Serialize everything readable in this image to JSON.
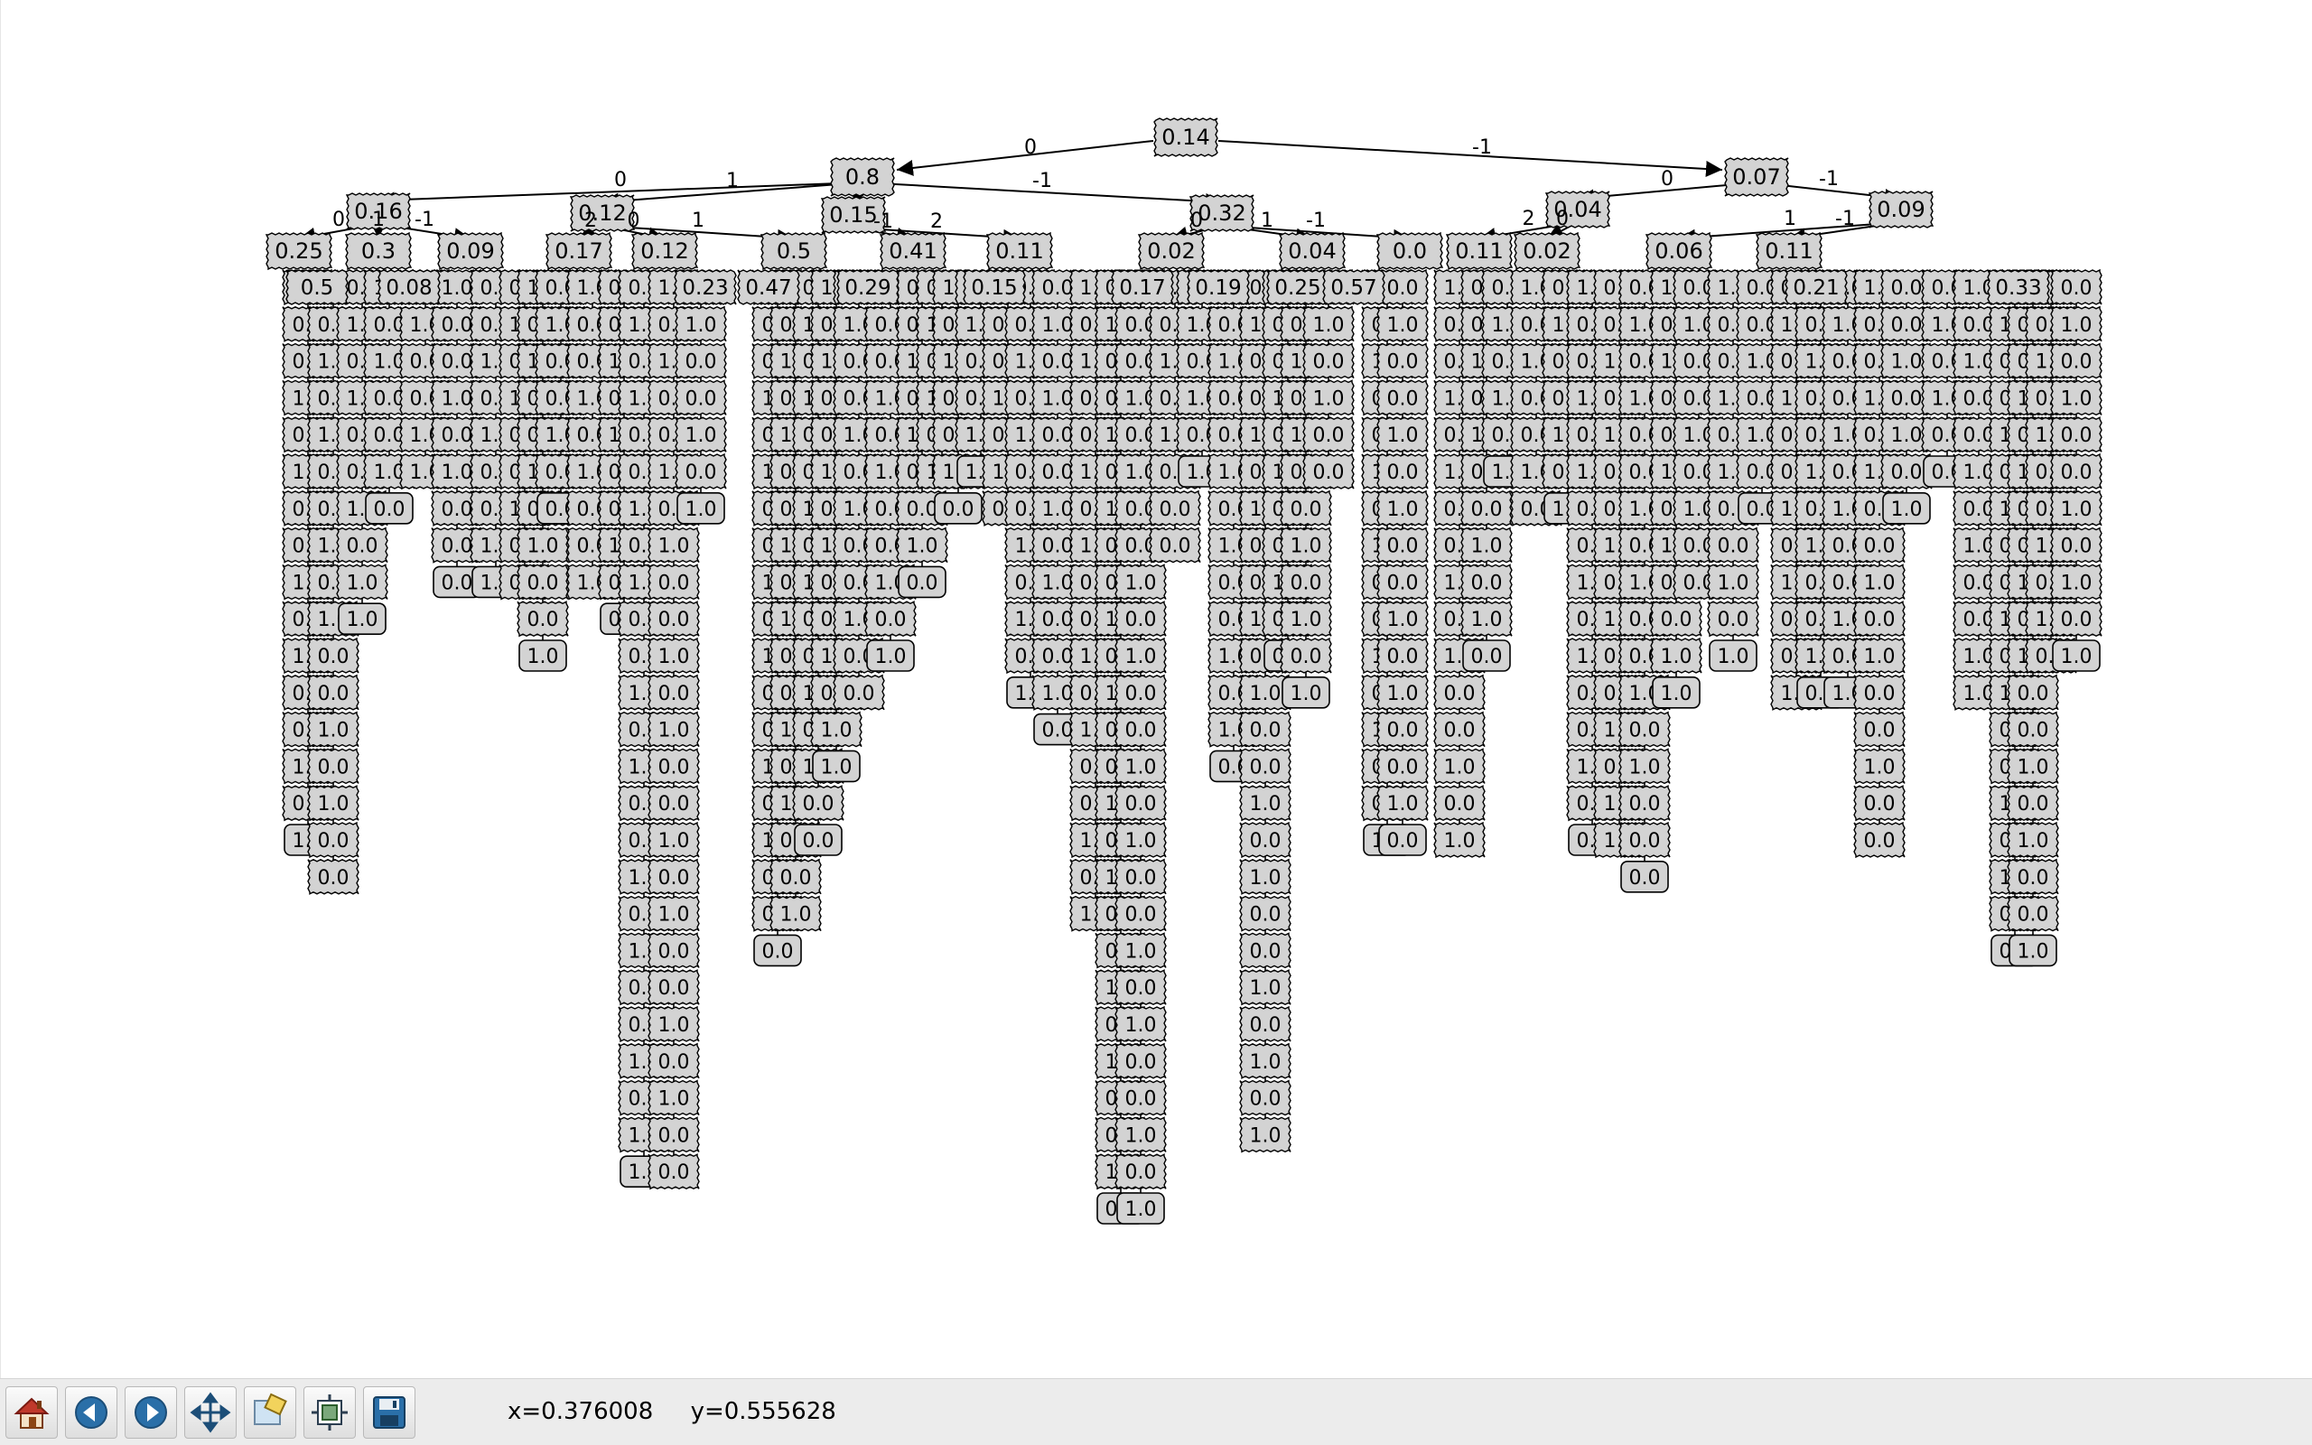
{
  "tree": {
    "root": {
      "label": "0.14"
    },
    "level1": [
      {
        "label": "0.8",
        "edge": "0"
      },
      {
        "label": "0.07",
        "edge": "-1"
      }
    ],
    "level2": [
      {
        "label": "0.16",
        "edge": "0"
      },
      {
        "label": "0.12",
        "edge": "1"
      },
      {
        "label": "0.15",
        "edge": ""
      },
      {
        "label": "0.32",
        "edge": "-1"
      },
      {
        "label": "0.04",
        "edge": "0"
      },
      {
        "label": "0.09",
        "edge": "-1"
      }
    ],
    "level3": [
      {
        "label": "0.25"
      },
      {
        "label": "0.3"
      },
      {
        "label": "0.09"
      },
      {
        "label": "0.17"
      },
      {
        "label": "0.12"
      },
      {
        "label": "0.5"
      },
      {
        "label": "0.41"
      },
      {
        "label": "0.11"
      },
      {
        "label": "0.02"
      },
      {
        "label": "0.04"
      },
      {
        "label": "0.0"
      },
      {
        "label": "0.11"
      },
      {
        "label": "0.02"
      },
      {
        "label": "0.06"
      },
      {
        "label": "0.11"
      }
    ],
    "level4": [
      {
        "label": "0.5"
      },
      {
        "label": "0.08"
      },
      {
        "label": "0.23"
      },
      {
        "label": "0.47"
      },
      {
        "label": "0.29"
      },
      {
        "label": "0.15"
      },
      {
        "label": "0.17"
      },
      {
        "label": "0.19"
      },
      {
        "label": "0.25"
      },
      {
        "label": "0.57"
      },
      {
        "label": "0.21"
      },
      {
        "label": "0.33"
      }
    ],
    "leaf_labels": [
      "1.0",
      "0.0"
    ],
    "inner_labels": [
      "1.0",
      "0.0",
      "0.0",
      "1.0",
      "0.0"
    ],
    "edge_labels": [
      "0",
      "1",
      "-1",
      "2"
    ]
  },
  "toolbar": {
    "buttons": [
      {
        "name": "home-button",
        "icon": "home-icon"
      },
      {
        "name": "back-button",
        "icon": "back-arrow-icon"
      },
      {
        "name": "forward-button",
        "icon": "forward-arrow-icon"
      },
      {
        "name": "pan-button",
        "icon": "pan-move-icon"
      },
      {
        "name": "zoom-button",
        "icon": "zoom-rect-icon"
      },
      {
        "name": "subplots-button",
        "icon": "subplots-config-icon"
      },
      {
        "name": "save-button",
        "icon": "save-floppy-icon"
      }
    ]
  },
  "status": {
    "x": "x=0.376008",
    "y": "y=0.555628"
  },
  "colors": {
    "node_fill": "#d3d3d3",
    "toolbar_bg": "#ececec",
    "icon_blue": "#2a6fa8"
  }
}
